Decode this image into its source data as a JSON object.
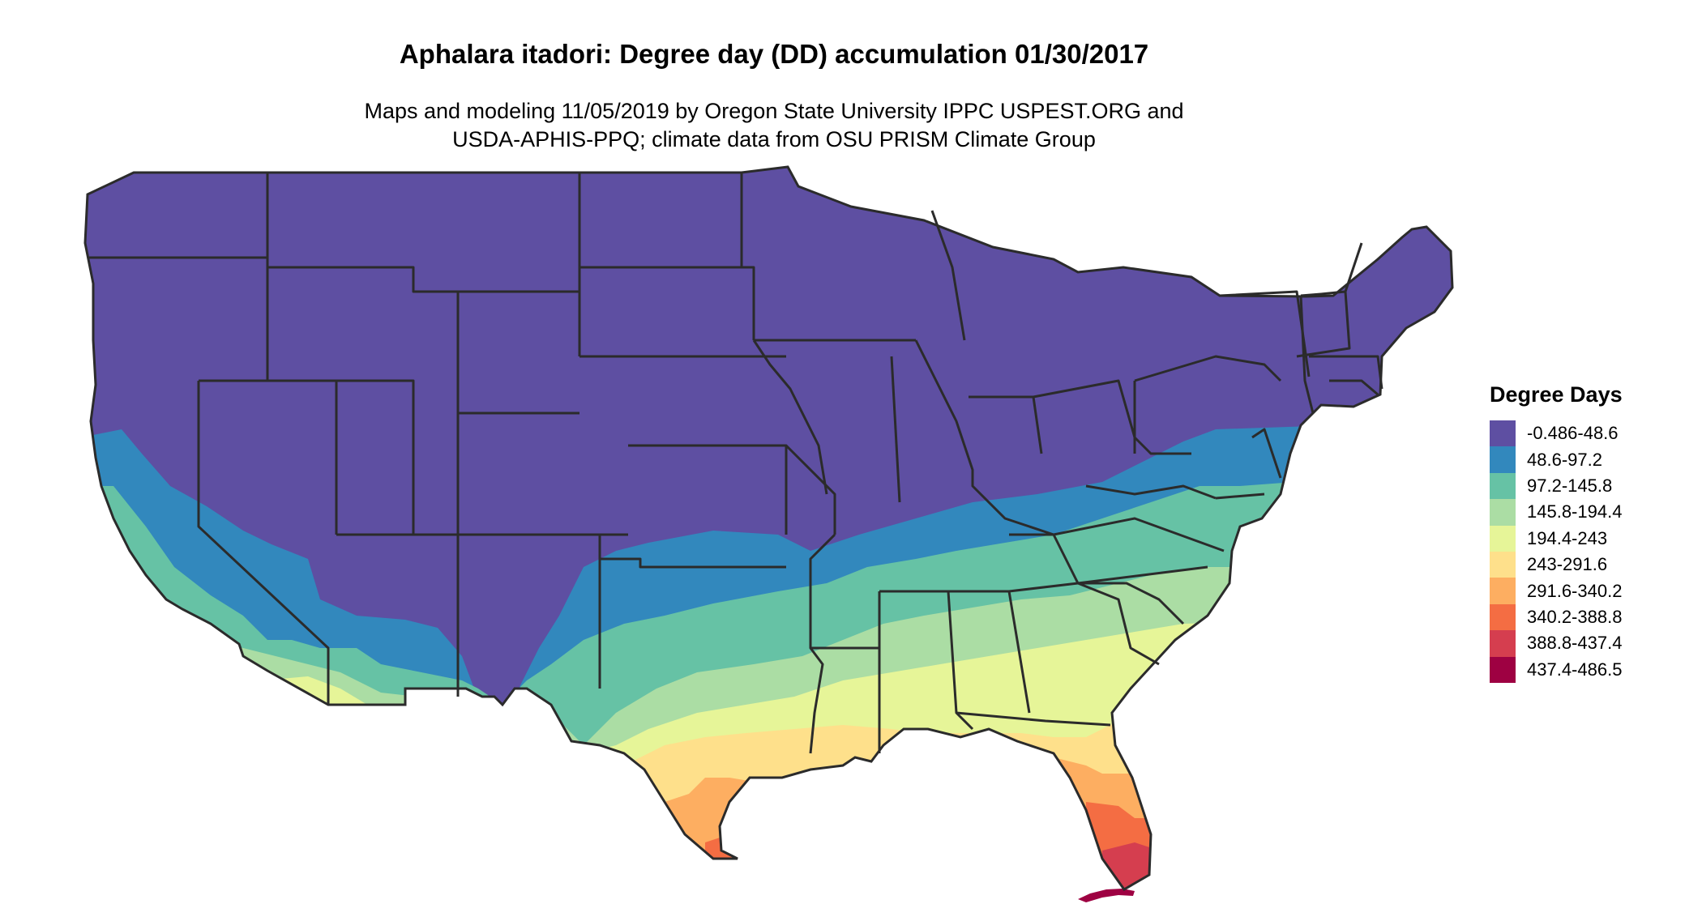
{
  "title": "Aphalara itadori: Degree day (DD) accumulation 01/30/2017",
  "subtitle": {
    "line1": "Maps and modeling 11/05/2019 by Oregon State University IPPC USPEST.ORG and",
    "line2": "USDA-APHIS-PPQ; climate data from OSU PRISM Climate Group"
  },
  "legend": {
    "title": "Degree Days",
    "items": [
      {
        "label": "-0.486-48.6",
        "color": "#5E4FA2"
      },
      {
        "label": "48.6-97.2",
        "color": "#3288BD"
      },
      {
        "label": "97.2-145.8",
        "color": "#66C2A5"
      },
      {
        "label": "145.8-194.4",
        "color": "#ABDDA4"
      },
      {
        "label": "194.4-243",
        "color": "#E6F598"
      },
      {
        "label": "243-291.6",
        "color": "#FEE08B"
      },
      {
        "label": "291.6-340.2",
        "color": "#FDAE61"
      },
      {
        "label": "340.2-388.8",
        "color": "#F46D43"
      },
      {
        "label": "388.8-437.4",
        "color": "#D53E4F"
      },
      {
        "label": "437.4-486.5",
        "color": "#9E0142"
      }
    ]
  },
  "colors": {
    "state_border": "#2b2b2b"
  }
}
